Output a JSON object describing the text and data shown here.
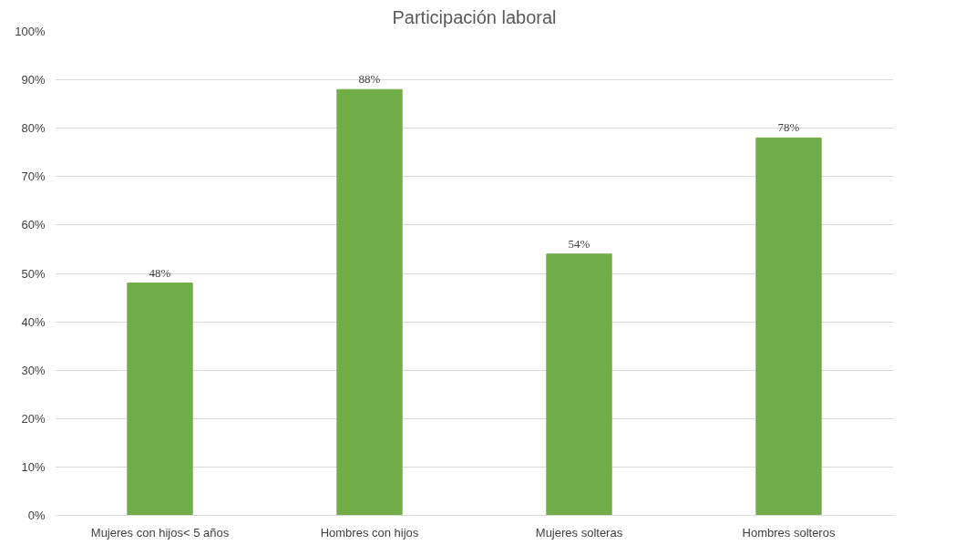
{
  "chart_data": {
    "type": "bar",
    "title": "Participación laboral",
    "categories": [
      "Mujeres con hijos< 5 años",
      "Hombres con hijos",
      "Mujeres solteras",
      "Hombres solteros"
    ],
    "values": [
      48,
      88,
      54,
      78
    ],
    "color": "#70ad47",
    "value_labels": [
      "48%",
      "88%",
      "54%",
      "78%"
    ],
    "ylim": [
      0,
      100
    ],
    "yticks": [
      {
        "value": 0,
        "label": "0%"
      },
      {
        "value": 10,
        "label": "10%"
      },
      {
        "value": 20,
        "label": "20%"
      },
      {
        "value": 30,
        "label": "30%"
      },
      {
        "value": 40,
        "label": "40%"
      },
      {
        "value": 50,
        "label": "50%"
      },
      {
        "value": 60,
        "label": "60%"
      },
      {
        "value": 70,
        "label": "70%"
      },
      {
        "value": 80,
        "label": "80%"
      },
      {
        "value": 90,
        "label": "90%"
      },
      {
        "value": 100,
        "label": "100%"
      }
    ],
    "grid": "y"
  }
}
